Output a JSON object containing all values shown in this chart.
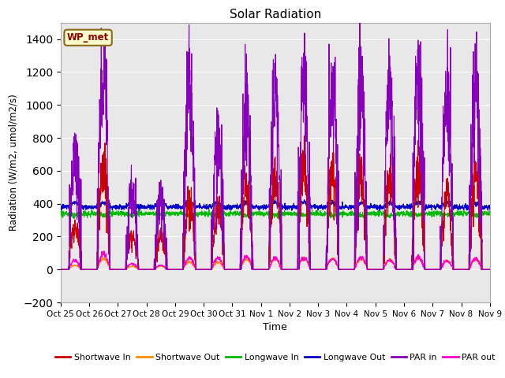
{
  "title": "Solar Radiation",
  "xlabel": "Time",
  "ylabel": "Radiation (W/m2, umol/m2/s)",
  "ylim": [
    -200,
    1500
  ],
  "yticks": [
    -200,
    0,
    200,
    400,
    600,
    800,
    1000,
    1200,
    1400
  ],
  "xlim": [
    0,
    15
  ],
  "background_color": "#e8e8e8",
  "annotation_text": "WP_met",
  "annotation_bg": "#ffffcc",
  "annotation_border": "#8b6914",
  "colors": {
    "shortwave_in": "#cc0000",
    "shortwave_out": "#ff8c00",
    "longwave_in": "#00bb00",
    "longwave_out": "#0000cc",
    "par_in": "#8800bb",
    "par_out": "#ff00cc"
  },
  "xtick_labels": [
    "Oct 25",
    "Oct 26",
    "Oct 27",
    "Oct 28",
    "Oct 29",
    "Oct 30",
    "Oct 31",
    "Nov 1",
    "Nov 2",
    "Nov 3",
    "Nov 4",
    "Nov 5",
    "Nov 6",
    "Nov 7",
    "Nov 8",
    "Nov 9"
  ],
  "n_days": 15,
  "samples_per_day": 144,
  "sw_in_peaks": [
    260,
    630,
    210,
    200,
    390,
    380,
    500,
    590,
    620,
    600,
    590,
    530,
    610,
    460,
    580
  ],
  "sw_out_peaks": [
    25,
    65,
    20,
    20,
    45,
    45,
    60,
    65,
    70,
    65,
    65,
    60,
    65,
    55,
    65
  ],
  "par_in_peaks": [
    680,
    1240,
    470,
    460,
    1160,
    790,
    1010,
    1080,
    1170,
    1140,
    1160,
    1150,
    1230,
    1110,
    1120
  ],
  "par_out_peaks": [
    55,
    95,
    35,
    25,
    70,
    70,
    75,
    70,
    70,
    65,
    70,
    55,
    75,
    50,
    65
  ],
  "lw_in_base": 340,
  "lw_out_base": 380
}
